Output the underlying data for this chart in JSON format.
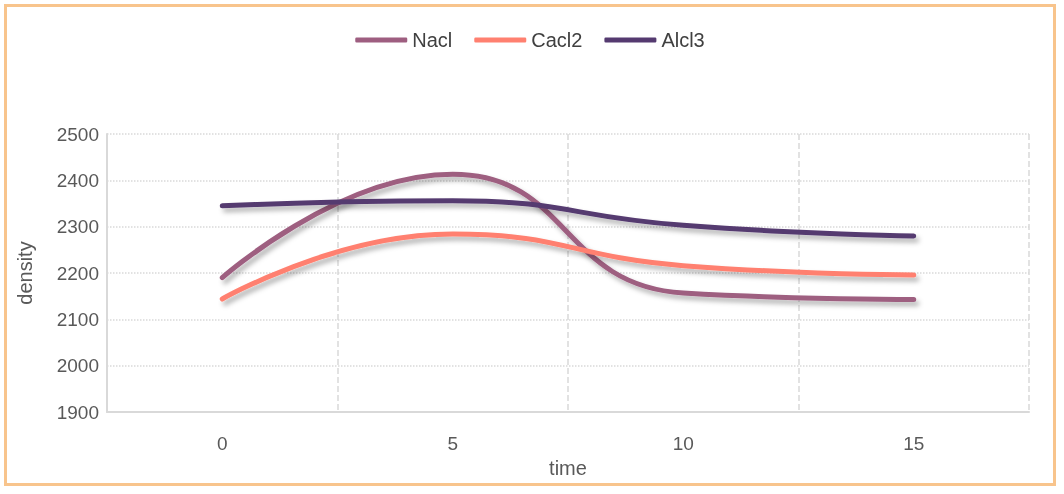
{
  "chart_data": {
    "type": "line",
    "xlabel": "time",
    "ylabel": "density",
    "categories": [
      "0",
      "5",
      "10",
      "15"
    ],
    "series": [
      {
        "name": "Nacl",
        "color": "#9e5e80",
        "values": [
          2190,
          2413,
          2157,
          2143
        ]
      },
      {
        "name": "Cacl2",
        "color": "#ff8070",
        "values": [
          2144,
          2284,
          2216,
          2196
        ]
      },
      {
        "name": "Alcl3",
        "color": "#553a70",
        "values": [
          2345,
          2356,
          2303,
          2280
        ]
      }
    ],
    "ylim": [
      1900,
      2500
    ],
    "yticks": [
      1900,
      2000,
      2100,
      2200,
      2300,
      2400,
      2500
    ],
    "grid": true,
    "legend": "top",
    "marker": "none",
    "line_style": "solid"
  }
}
